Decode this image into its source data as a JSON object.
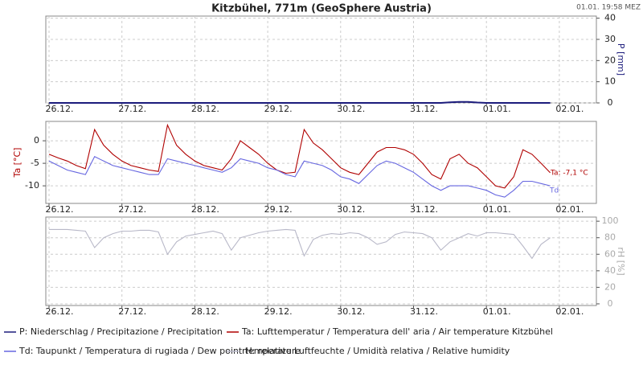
{
  "title": "Kitzbühel, 771m (GeoSphere Austria)",
  "timestamp": "01.01. 19:58 MEZ",
  "chart_data": [
    {
      "type": "line",
      "axis_side": "right",
      "y_label": "P [mm]",
      "ylim": [
        0,
        41
      ],
      "yticks": [
        0,
        10,
        20,
        30,
        40
      ],
      "grid": true,
      "categories": [
        "26.12.",
        null,
        null,
        null,
        null,
        null,
        null,
        null,
        "27.12.",
        null,
        null,
        null,
        null,
        null,
        null,
        null,
        "28.12.",
        null,
        null,
        null,
        null,
        null,
        null,
        null,
        "29.12.",
        null,
        null,
        null,
        null,
        null,
        null,
        null,
        "30.12.",
        null,
        null,
        null,
        null,
        null,
        null,
        null,
        "31.12.",
        null,
        null,
        null,
        null,
        null,
        null,
        null,
        "01.01.",
        null,
        null,
        null,
        null,
        null,
        null,
        null,
        "02.01."
      ],
      "series": [
        {
          "name": "P: Niederschlag / Precipitazione / Precipitation",
          "color": "#1c1c7c",
          "values": [
            0,
            0,
            0,
            0,
            0,
            0,
            0,
            0,
            0,
            0,
            0,
            0,
            0,
            0,
            0,
            0,
            0,
            0,
            0,
            0,
            0,
            0,
            0,
            0,
            0,
            0,
            0,
            0,
            0,
            0,
            0,
            0,
            0,
            0,
            0,
            0,
            0,
            0,
            0,
            0,
            0,
            0,
            0,
            0,
            0.3,
            0.5,
            0.5,
            0.2,
            0,
            0,
            0,
            0,
            0,
            0,
            0,
            0,
            null
          ]
        }
      ]
    },
    {
      "type": "line",
      "axis_side": "left",
      "y_label": "Ta [°C]",
      "ylim": [
        -13.9,
        4.3
      ],
      "yticks": [
        -10,
        -5,
        0
      ],
      "grid": true,
      "annotations": [
        "Ta: -7,1 °C",
        "Td"
      ],
      "categories": [
        "26.12.",
        null,
        null,
        null,
        null,
        null,
        null,
        null,
        "27.12.",
        null,
        null,
        null,
        null,
        null,
        null,
        null,
        "28.12.",
        null,
        null,
        null,
        null,
        null,
        null,
        null,
        "29.12.",
        null,
        null,
        null,
        null,
        null,
        null,
        null,
        "30.12.",
        null,
        null,
        null,
        null,
        null,
        null,
        null,
        "31.12.",
        null,
        null,
        null,
        null,
        null,
        null,
        null,
        "01.01.",
        null,
        null,
        null,
        null,
        null,
        null,
        null,
        "02.01."
      ],
      "series": [
        {
          "name": "Ta: Lufttemperatur / Temperatura dell' aria / Air temperature  Kitzbühel",
          "color": "#b00000",
          "values": [
            -3,
            -3.8,
            -4.5,
            -5.5,
            -6.2,
            2.5,
            -1,
            -3,
            -4.5,
            -5.5,
            -6,
            -6.5,
            -6.8,
            3.5,
            -1,
            -3,
            -4.5,
            -5.5,
            -6,
            -6.5,
            -4,
            0,
            -1.5,
            -3,
            -5,
            -6.5,
            -7.2,
            -7,
            2.5,
            -0.5,
            -2,
            -4,
            -6,
            -7,
            -7.5,
            -5,
            -2.5,
            -1.5,
            -1.5,
            -2,
            -3,
            -5,
            -7.5,
            -8.5,
            -4,
            -3,
            -5,
            -6,
            -8,
            -10,
            -10.5,
            -8,
            -2,
            -3,
            -5,
            -7.1,
            null
          ]
        },
        {
          "name": "Td: Taupunkt / Temperatura di rugiada / Dew point temperature",
          "color": "#6666e0",
          "values": [
            -4.5,
            -5.5,
            -6.5,
            -7,
            -7.5,
            -3.5,
            -4.5,
            -5.5,
            -6,
            -6.5,
            -7,
            -7.5,
            -7.5,
            -4,
            -4.5,
            -5,
            -5.5,
            -6,
            -6.5,
            -7,
            -6,
            -4,
            -4.5,
            -5,
            -6,
            -6.5,
            -7.5,
            -8,
            -4.5,
            -5,
            -5.5,
            -6.5,
            -8,
            -8.5,
            -9.5,
            -7.5,
            -5.5,
            -4.5,
            -5,
            -6,
            -7,
            -8.5,
            -10,
            -11,
            -10,
            -10,
            -10,
            -10.5,
            -11,
            -12,
            -12.5,
            -11,
            -9,
            -9,
            -9.5,
            -10,
            null
          ]
        }
      ]
    },
    {
      "type": "line",
      "axis_side": "right",
      "y_label": "rH [%]",
      "ylim": [
        -2,
        105
      ],
      "yticks": [
        0,
        20,
        40,
        60,
        80,
        100
      ],
      "grid": true,
      "categories": [
        "26.12.",
        null,
        null,
        null,
        null,
        null,
        null,
        null,
        "27.12.",
        null,
        null,
        null,
        null,
        null,
        null,
        null,
        "28.12.",
        null,
        null,
        null,
        null,
        null,
        null,
        null,
        "29.12.",
        null,
        null,
        null,
        null,
        null,
        null,
        null,
        "30.12.",
        null,
        null,
        null,
        null,
        null,
        null,
        null,
        "31.12.",
        null,
        null,
        null,
        null,
        null,
        null,
        null,
        "01.01.",
        null,
        null,
        null,
        null,
        null,
        null,
        null,
        "02.01."
      ],
      "series": [
        {
          "name": "rH: relative Luftfeuchte / Umidità relativa / Relative humidity",
          "color": "#b8b8c8",
          "values": [
            90,
            90,
            90,
            89,
            88,
            68,
            80,
            85,
            88,
            88,
            89,
            89,
            87,
            60,
            75,
            82,
            84,
            86,
            88,
            85,
            65,
            80,
            83,
            86,
            88,
            89,
            90,
            89,
            58,
            78,
            83,
            85,
            84,
            86,
            85,
            80,
            72,
            75,
            84,
            87,
            86,
            85,
            80,
            65,
            75,
            80,
            85,
            82,
            86,
            86,
            85,
            84,
            70,
            55,
            72,
            80,
            null
          ]
        }
      ]
    }
  ]
}
